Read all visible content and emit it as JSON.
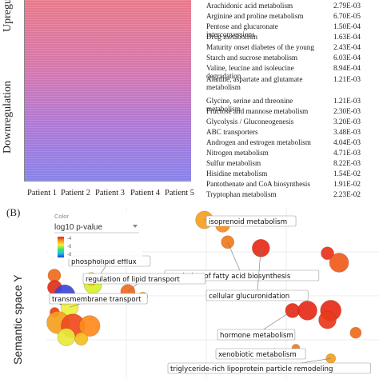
{
  "panel_a": {
    "up_label": "Upregulation",
    "down_label": "Downregulation",
    "patients": [
      "Patient 1",
      "Patient 2",
      "Patient 3",
      "Patient 4",
      "Patient 5"
    ],
    "pathways": [
      {
        "name": "Arachidonic acid metabolism",
        "value": "2.79E-03"
      },
      {
        "name": "Arginine and proline metabolism",
        "value": "6.70E-05"
      },
      {
        "name": "Pentose and glucuronate interconversions",
        "value": "1.50E-04"
      },
      {
        "name": "Drug metabolism",
        "value": "1.63E-04"
      },
      {
        "name": "Maturity onset diabetes of the young",
        "value": "2.43E-04"
      },
      {
        "name": "Starch and sucrose metabolism",
        "value": "6.03E-04"
      },
      {
        "name": "Valine, leucine and isoleucine degradation",
        "value": "8.94E-04"
      },
      {
        "name": "Alanine, aspartate and glutamate metabolism",
        "value": "1.21E-03"
      },
      {
        "name": "Glycine, serine and threonine metabolism",
        "value": "1.21E-03"
      },
      {
        "name": "Fructose and mannose metabolism",
        "value": "2.30E-03"
      },
      {
        "name": "Glycolysis / Gluconeogenesis",
        "value": "3.20E-03"
      },
      {
        "name": "ABC transporters",
        "value": "3.48E-03"
      },
      {
        "name": "Androgen and estrogen metabolism",
        "value": "4.04E-03"
      },
      {
        "name": "Nitrogen metabolism",
        "value": "4.71E-03"
      },
      {
        "name": "Sulfur metabolism",
        "value": "8.22E-03"
      },
      {
        "name": "Hisidine metabolism",
        "value": "1.54E-02"
      },
      {
        "name": "Pantothenate and CoA biosynthesis",
        "value": "1.91E-02"
      },
      {
        "name": "Tryptophan metabolism",
        "value": "2.23E-02"
      }
    ]
  },
  "panel_b": {
    "label": "(B)",
    "legend_title": "Color",
    "dropdown_value": "log10 p-value",
    "legend_ticks": [
      "-4",
      "-6",
      "-8"
    ]
  },
  "chart_data": {
    "type": "scatter",
    "ylabel": "Semantic space Y",
    "color_scale": [
      "#1a3fd6",
      "#19c0f0",
      "#3ee65a",
      "#f4f03a",
      "#ff9a1f",
      "#e8231a"
    ],
    "points": [
      {
        "x": 0.475,
        "y": 0.93,
        "size": 11,
        "color": "#f5a020",
        "label": "isoprenoid metabolism"
      },
      {
        "x": 0.53,
        "y": 0.9,
        "size": 9,
        "color": "#ff8a1c",
        "label": ""
      },
      {
        "x": 0.545,
        "y": 0.8,
        "size": 8,
        "color": "#f07a1c",
        "label": "regulation of fatty acid biosynthesis"
      },
      {
        "x": 0.645,
        "y": 0.765,
        "size": 11,
        "color": "#e62a18",
        "label": "cellular glucuronidation"
      },
      {
        "x": 0.845,
        "y": 0.735,
        "size": 8,
        "color": "#e8331b",
        "label": ""
      },
      {
        "x": 0.88,
        "y": 0.68,
        "size": 12,
        "color": "#f05a1c",
        "label": ""
      },
      {
        "x": 0.14,
        "y": 0.55,
        "size": 11,
        "color": "#d8f02a",
        "label": "phospholipid efflux"
      },
      {
        "x": 0.135,
        "y": 0.585,
        "size": 8,
        "color": "#f4c020",
        "label": ""
      },
      {
        "x": 0.024,
        "y": 0.605,
        "size": 8,
        "color": "#f06a1c",
        "label": ""
      },
      {
        "x": 0.025,
        "y": 0.535,
        "size": 9,
        "color": "#e0301a",
        "label": ""
      },
      {
        "x": 0.055,
        "y": 0.49,
        "size": 13,
        "color": "#3b48d8",
        "label": ""
      },
      {
        "x": 0.245,
        "y": 0.51,
        "size": 9,
        "color": "#f06a1c",
        "label": "regulation of lipid transport"
      },
      {
        "x": 0.29,
        "y": 0.48,
        "size": 6,
        "color": "#f4b020",
        "label": ""
      },
      {
        "x": 0.07,
        "y": 0.42,
        "size": 11,
        "color": "#eef040",
        "label": "transmembrane transport"
      },
      {
        "x": 0.025,
        "y": 0.39,
        "size": 6,
        "color": "#e8401a",
        "label": ""
      },
      {
        "x": 0.035,
        "y": 0.33,
        "size": 14,
        "color": "#f4a020",
        "label": ""
      },
      {
        "x": 0.08,
        "y": 0.31,
        "size": 15,
        "color": "#f04a1c",
        "label": ""
      },
      {
        "x": 0.13,
        "y": 0.31,
        "size": 13,
        "color": "#ff8a1c",
        "label": ""
      },
      {
        "x": 0.06,
        "y": 0.245,
        "size": 11,
        "color": "#e8e83a",
        "label": ""
      },
      {
        "x": 0.105,
        "y": 0.235,
        "size": 8,
        "color": "#f4c020",
        "label": ""
      },
      {
        "x": 0.74,
        "y": 0.4,
        "size": 9,
        "color": "#e62a18",
        "label": "hormone metabolism"
      },
      {
        "x": 0.785,
        "y": 0.4,
        "size": 12,
        "color": "#e62a18",
        "label": ""
      },
      {
        "x": 0.855,
        "y": 0.4,
        "size": 13,
        "color": "#e62a18",
        "label": ""
      },
      {
        "x": 0.845,
        "y": 0.345,
        "size": 11,
        "color": "#e83a1b",
        "label": ""
      },
      {
        "x": 0.93,
        "y": 0.27,
        "size": 7,
        "color": "#f06a1c",
        "label": ""
      },
      {
        "x": 0.75,
        "y": 0.18,
        "size": 5,
        "color": "#f07a1c",
        "label": "xenobiotic metabolism"
      },
      {
        "x": 0.855,
        "y": 0.12,
        "size": 6,
        "color": "#f4a020",
        "label": "triglyceride-rich lipoprotein particle remodeling"
      }
    ]
  }
}
